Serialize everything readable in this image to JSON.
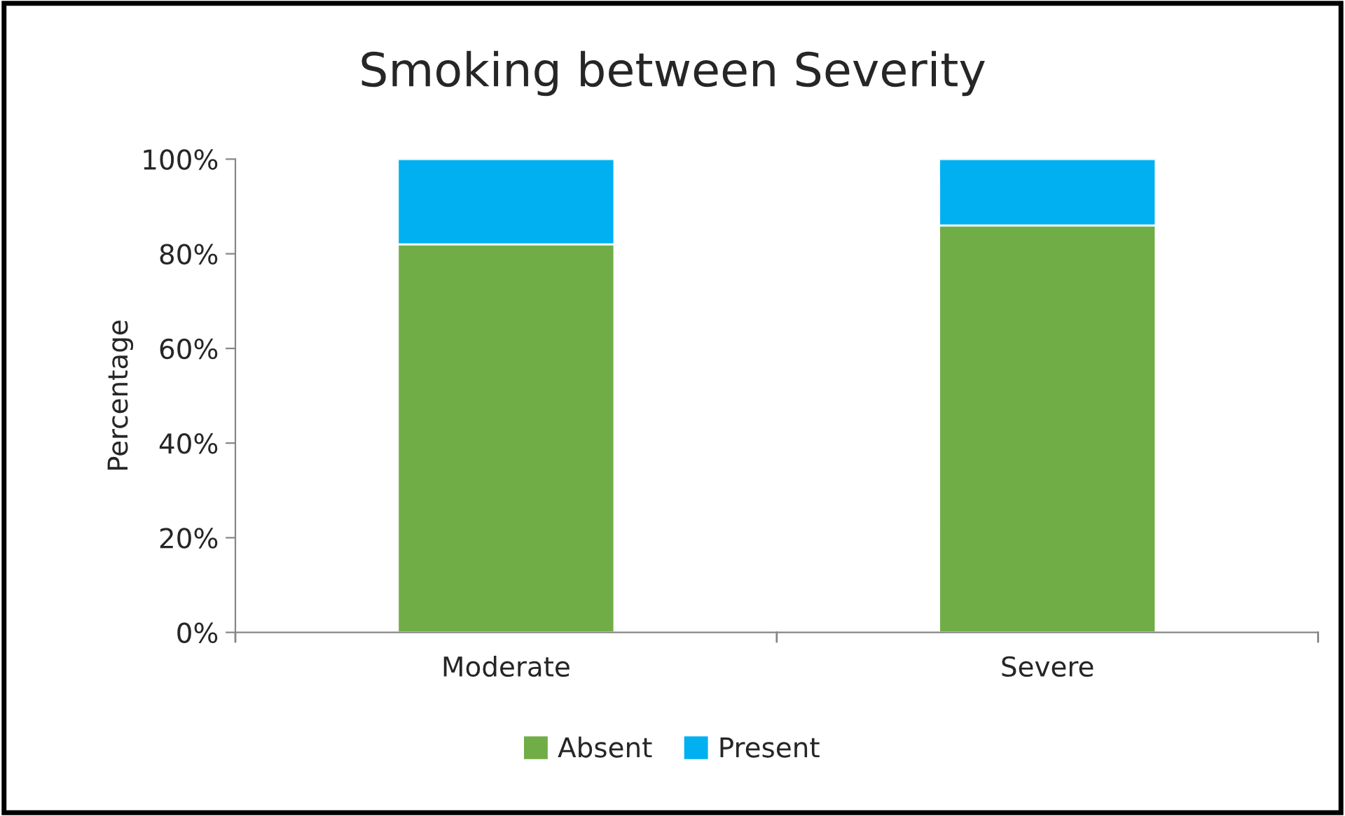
{
  "chart_data": {
    "type": "bar",
    "title": "Smoking between Severity",
    "ylabel": "Percentage",
    "stacked": true,
    "categories": [
      "Moderate",
      "Severe"
    ],
    "series": [
      {
        "name": "Absent",
        "color": "#70ad47",
        "values": [
          82,
          86
        ]
      },
      {
        "name": "Present",
        "color": "#00b0f0",
        "values": [
          18,
          14
        ]
      }
    ],
    "ylim": [
      0,
      100
    ],
    "yticks": [
      {
        "value": 0,
        "label": "0%"
      },
      {
        "value": 20,
        "label": "20%"
      },
      {
        "value": 40,
        "label": "40%"
      },
      {
        "value": 60,
        "label": "60%"
      },
      {
        "value": 80,
        "label": "80%"
      },
      {
        "value": 100,
        "label": "100%"
      }
    ],
    "grid": false,
    "legend": "bottom"
  }
}
